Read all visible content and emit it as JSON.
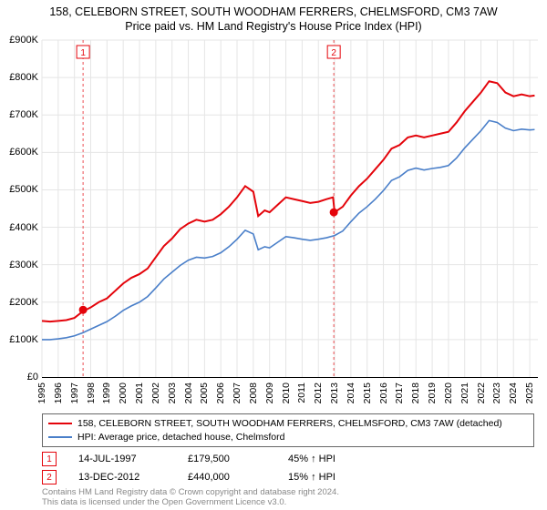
{
  "title": {
    "line1": "158, CELEBORN STREET, SOUTH WOODHAM FERRERS, CHELMSFORD, CM3 7AW",
    "line2": "Price paid vs. HM Land Registry's House Price Index (HPI)"
  },
  "chart": {
    "type": "line",
    "background_color": "#ffffff",
    "ylim": [
      0,
      900000
    ],
    "ytick_step": 100000,
    "ytick_labels": [
      "£0",
      "£100K",
      "£200K",
      "£300K",
      "£400K",
      "£500K",
      "£600K",
      "£700K",
      "£800K",
      "£900K"
    ],
    "xlim": [
      1995,
      2025.5
    ],
    "xtick_step": 1,
    "xtick_labels": [
      "1995",
      "1996",
      "1997",
      "1998",
      "1999",
      "2000",
      "2001",
      "2002",
      "2003",
      "2004",
      "2005",
      "2006",
      "2007",
      "2008",
      "2009",
      "2010",
      "2011",
      "2012",
      "2013",
      "2014",
      "2015",
      "2016",
      "2017",
      "2018",
      "2019",
      "2020",
      "2021",
      "2022",
      "2023",
      "2024",
      "2025"
    ],
    "grid_color": "#e5e5e5",
    "axis_color": "#000000",
    "label_fontsize": 11,
    "series": [
      {
        "name": "property",
        "label": "158, CELEBORN STREET, SOUTH WOODHAM FERRERS, CHELMSFORD, CM3 7AW (detached)",
        "color": "#e4040b",
        "line_width": 2,
        "data": [
          [
            1995.0,
            150000
          ],
          [
            1995.5,
            148000
          ],
          [
            1996.0,
            150000
          ],
          [
            1996.5,
            152000
          ],
          [
            1997.0,
            158000
          ],
          [
            1997.5,
            175000
          ],
          [
            1998.0,
            186000
          ],
          [
            1998.5,
            200000
          ],
          [
            1999.0,
            210000
          ],
          [
            1999.5,
            230000
          ],
          [
            2000.0,
            250000
          ],
          [
            2000.5,
            265000
          ],
          [
            2001.0,
            275000
          ],
          [
            2001.5,
            290000
          ],
          [
            2002.0,
            320000
          ],
          [
            2002.5,
            350000
          ],
          [
            2003.0,
            370000
          ],
          [
            2003.5,
            395000
          ],
          [
            2004.0,
            410000
          ],
          [
            2004.5,
            420000
          ],
          [
            2005.0,
            415000
          ],
          [
            2005.5,
            420000
          ],
          [
            2006.0,
            435000
          ],
          [
            2006.5,
            455000
          ],
          [
            2007.0,
            480000
          ],
          [
            2007.5,
            510000
          ],
          [
            2008.0,
            495000
          ],
          [
            2008.3,
            430000
          ],
          [
            2008.7,
            445000
          ],
          [
            2009.0,
            440000
          ],
          [
            2009.5,
            460000
          ],
          [
            2010.0,
            480000
          ],
          [
            2010.5,
            475000
          ],
          [
            2011.0,
            470000
          ],
          [
            2011.5,
            465000
          ],
          [
            2012.0,
            468000
          ],
          [
            2012.5,
            475000
          ],
          [
            2012.9,
            480000
          ],
          [
            2013.0,
            440000
          ],
          [
            2013.5,
            455000
          ],
          [
            2014.0,
            485000
          ],
          [
            2014.5,
            510000
          ],
          [
            2015.0,
            530000
          ],
          [
            2015.5,
            555000
          ],
          [
            2016.0,
            580000
          ],
          [
            2016.5,
            610000
          ],
          [
            2017.0,
            620000
          ],
          [
            2017.5,
            640000
          ],
          [
            2018.0,
            645000
          ],
          [
            2018.5,
            640000
          ],
          [
            2019.0,
            645000
          ],
          [
            2019.5,
            650000
          ],
          [
            2020.0,
            655000
          ],
          [
            2020.5,
            680000
          ],
          [
            2021.0,
            710000
          ],
          [
            2021.5,
            735000
          ],
          [
            2022.0,
            760000
          ],
          [
            2022.5,
            790000
          ],
          [
            2023.0,
            785000
          ],
          [
            2023.5,
            760000
          ],
          [
            2024.0,
            750000
          ],
          [
            2024.5,
            755000
          ],
          [
            2025.0,
            750000
          ],
          [
            2025.3,
            752000
          ]
        ]
      },
      {
        "name": "hpi",
        "label": "HPI: Average price, detached house, Chelmsford",
        "color": "#4a7fc9",
        "line_width": 1.6,
        "data": [
          [
            1995.0,
            100000
          ],
          [
            1995.5,
            100000
          ],
          [
            1996.0,
            102000
          ],
          [
            1996.5,
            105000
          ],
          [
            1997.0,
            110000
          ],
          [
            1997.5,
            118000
          ],
          [
            1998.0,
            128000
          ],
          [
            1998.5,
            138000
          ],
          [
            1999.0,
            148000
          ],
          [
            1999.5,
            162000
          ],
          [
            2000.0,
            178000
          ],
          [
            2000.5,
            190000
          ],
          [
            2001.0,
            200000
          ],
          [
            2001.5,
            215000
          ],
          [
            2002.0,
            238000
          ],
          [
            2002.5,
            262000
          ],
          [
            2003.0,
            280000
          ],
          [
            2003.5,
            298000
          ],
          [
            2004.0,
            312000
          ],
          [
            2004.5,
            320000
          ],
          [
            2005.0,
            318000
          ],
          [
            2005.5,
            322000
          ],
          [
            2006.0,
            332000
          ],
          [
            2006.5,
            348000
          ],
          [
            2007.0,
            368000
          ],
          [
            2007.5,
            392000
          ],
          [
            2008.0,
            382000
          ],
          [
            2008.3,
            340000
          ],
          [
            2008.7,
            348000
          ],
          [
            2009.0,
            345000
          ],
          [
            2009.5,
            360000
          ],
          [
            2010.0,
            375000
          ],
          [
            2010.5,
            372000
          ],
          [
            2011.0,
            368000
          ],
          [
            2011.5,
            365000
          ],
          [
            2012.0,
            368000
          ],
          [
            2012.5,
            372000
          ],
          [
            2013.0,
            378000
          ],
          [
            2013.5,
            390000
          ],
          [
            2014.0,
            415000
          ],
          [
            2014.5,
            438000
          ],
          [
            2015.0,
            455000
          ],
          [
            2015.5,
            475000
          ],
          [
            2016.0,
            498000
          ],
          [
            2016.5,
            525000
          ],
          [
            2017.0,
            535000
          ],
          [
            2017.5,
            552000
          ],
          [
            2018.0,
            558000
          ],
          [
            2018.5,
            553000
          ],
          [
            2019.0,
            557000
          ],
          [
            2019.5,
            560000
          ],
          [
            2020.0,
            565000
          ],
          [
            2020.5,
            585000
          ],
          [
            2021.0,
            612000
          ],
          [
            2021.5,
            635000
          ],
          [
            2022.0,
            658000
          ],
          [
            2022.5,
            685000
          ],
          [
            2023.0,
            680000
          ],
          [
            2023.5,
            665000
          ],
          [
            2024.0,
            658000
          ],
          [
            2024.5,
            662000
          ],
          [
            2025.0,
            660000
          ],
          [
            2025.3,
            661000
          ]
        ]
      }
    ],
    "sale_markers": [
      {
        "n": "1",
        "x": 1997.53,
        "y": 179500,
        "color": "#e4040b",
        "vline_color": "#e4040b"
      },
      {
        "n": "2",
        "x": 2012.95,
        "y": 440000,
        "color": "#e4040b",
        "vline_color": "#e4040b"
      }
    ]
  },
  "legend": {
    "border_color": "#666666"
  },
  "sales_table": {
    "rows": [
      {
        "n": "1",
        "date": "14-JUL-1997",
        "price": "£179,500",
        "diff": "45% ↑ HPI",
        "color": "#e4040b"
      },
      {
        "n": "2",
        "date": "13-DEC-2012",
        "price": "£440,000",
        "diff": "15% ↑ HPI",
        "color": "#e4040b"
      }
    ]
  },
  "attribution": {
    "line1": "Contains HM Land Registry data © Crown copyright and database right 2024.",
    "line2": "This data is licensed under the Open Government Licence v3.0."
  }
}
